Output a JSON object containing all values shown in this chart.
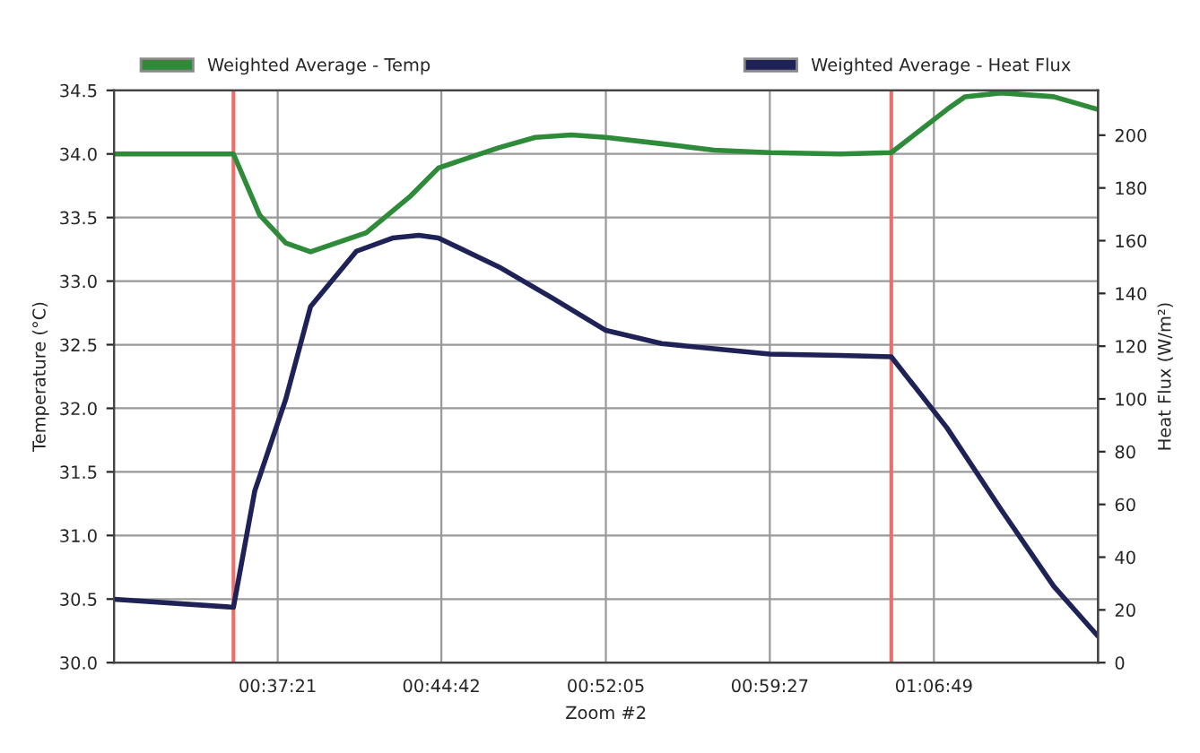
{
  "chart_data": {
    "type": "line",
    "xlabel": "Zoom #2",
    "ylabel": "Temperature (°C)",
    "y2label": "Heat Flux (W/m²)",
    "xlim": [
      0.5,
      1.2364
    ],
    "xticks": [
      {
        "value": 0.6225,
        "label": "00:37:21"
      },
      {
        "value": 0.745,
        "label": "00:44:42"
      },
      {
        "value": 0.8681,
        "label": "00:52:05"
      },
      {
        "value": 0.9908,
        "label": "00:59:27"
      },
      {
        "value": 1.1136,
        "label": "01:06:49"
      }
    ],
    "ylim": [
      30.0,
      34.5
    ],
    "yticks": [
      {
        "value": 30.0,
        "label": "30.0"
      },
      {
        "value": 30.5,
        "label": "30.5"
      },
      {
        "value": 31.0,
        "label": "31.0"
      },
      {
        "value": 31.5,
        "label": "31.5"
      },
      {
        "value": 32.0,
        "label": "32.0"
      },
      {
        "value": 32.5,
        "label": "32.5"
      },
      {
        "value": 33.0,
        "label": "33.0"
      },
      {
        "value": 33.5,
        "label": "33.5"
      },
      {
        "value": 34.0,
        "label": "34.0"
      },
      {
        "value": 34.5,
        "label": "34.5"
      }
    ],
    "y2lim": [
      0,
      217
    ],
    "y2ticks": [
      0,
      20,
      40,
      60,
      80,
      100,
      120,
      140,
      160,
      180,
      200
    ],
    "series": [
      {
        "name": "Weighted Average - Temp",
        "color": "#2e8b3a",
        "x": [
          0.5,
          0.5894,
          0.609,
          0.6286,
          0.6471,
          0.6888,
          0.722,
          0.7428,
          0.7883,
          0.8153,
          0.8423,
          0.8681,
          0.9098,
          0.9491,
          0.9908,
          1.0436,
          1.0817,
          1.1234,
          1.1369,
          1.1639,
          1.2032,
          1.2364
        ],
        "values": [
          34.0,
          34.0,
          33.52,
          33.3,
          33.23,
          33.38,
          33.67,
          33.89,
          34.05,
          34.13,
          34.15,
          34.13,
          34.08,
          34.03,
          34.01,
          34.0,
          34.01,
          34.35,
          34.45,
          34.48,
          34.45,
          34.35
        ]
      },
      {
        "name": "Weighted Average - Heat Flux",
        "color": "#1e2257",
        "axis": "y2",
        "x": [
          0.5,
          0.5894,
          0.6053,
          0.6286,
          0.6471,
          0.6814,
          0.7084,
          0.7281,
          0.7428,
          0.7883,
          0.8288,
          0.8681,
          0.9098,
          0.9491,
          0.9908,
          1.0436,
          1.0817,
          1.1234,
          1.1639,
          1.2032,
          1.2364
        ],
        "values": [
          24,
          21,
          65,
          100,
          135,
          156,
          161,
          162,
          161,
          150,
          138,
          126,
          121,
          119,
          117,
          116.5,
          116,
          89,
          58,
          29,
          10
        ]
      }
    ],
    "ref_lines": [
      {
        "axis": "x",
        "value": 0.5894,
        "color": "#e8706a"
      },
      {
        "axis": "x",
        "value": 1.0817,
        "color": "#e8706a"
      }
    ],
    "grid": true,
    "legend": "top"
  }
}
